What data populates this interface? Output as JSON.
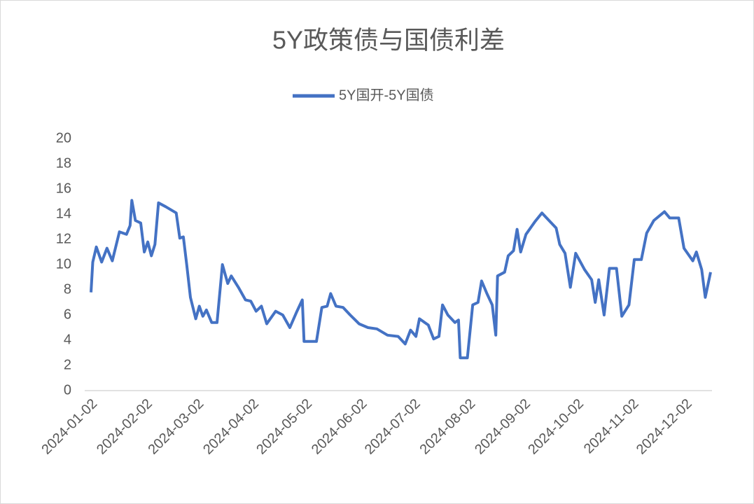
{
  "chart_data": {
    "type": "line",
    "title": "5Y政策债与国债利差",
    "x": [
      "2024-01-02",
      "2024-01-03",
      "2024-01-05",
      "2024-01-08",
      "2024-01-11",
      "2024-01-14",
      "2024-01-18",
      "2024-01-22",
      "2024-01-24",
      "2024-01-25",
      "2024-01-27",
      "2024-01-30",
      "2024-02-01",
      "2024-02-03",
      "2024-02-05",
      "2024-02-07",
      "2024-02-09",
      "2024-02-13",
      "2024-02-19",
      "2024-02-21",
      "2024-02-23",
      "2024-02-25",
      "2024-02-27",
      "2024-03-01",
      "2024-03-03",
      "2024-03-05",
      "2024-03-07",
      "2024-03-10",
      "2024-03-13",
      "2024-03-16",
      "2024-03-19",
      "2024-03-21",
      "2024-03-25",
      "2024-03-29",
      "2024-04-01",
      "2024-04-04",
      "2024-04-07",
      "2024-04-10",
      "2024-04-15",
      "2024-04-19",
      "2024-04-23",
      "2024-04-27",
      "2024-04-30",
      "2024-05-01",
      "2024-05-08",
      "2024-05-11",
      "2024-05-14",
      "2024-05-16",
      "2024-05-19",
      "2024-05-23",
      "2024-05-27",
      "2024-06-01",
      "2024-06-06",
      "2024-06-11",
      "2024-06-17",
      "2024-06-23",
      "2024-06-27",
      "2024-06-30",
      "2024-07-03",
      "2024-07-05",
      "2024-07-10",
      "2024-07-13",
      "2024-07-16",
      "2024-07-18",
      "2024-07-21",
      "2024-07-25",
      "2024-07-27",
      "2024-07-28",
      "2024-08-01",
      "2024-08-04",
      "2024-08-07",
      "2024-08-09",
      "2024-08-12",
      "2024-08-15",
      "2024-08-17",
      "2024-08-18",
      "2024-08-22",
      "2024-08-24",
      "2024-08-27",
      "2024-08-29",
      "2024-08-31",
      "2024-09-03",
      "2024-09-08",
      "2024-09-12",
      "2024-09-16",
      "2024-09-20",
      "2024-09-22",
      "2024-09-25",
      "2024-09-28",
      "2024-10-01",
      "2024-10-06",
      "2024-10-10",
      "2024-10-12",
      "2024-10-14",
      "2024-10-17",
      "2024-10-20",
      "2024-10-24",
      "2024-10-27",
      "2024-10-31",
      "2024-11-03",
      "2024-11-07",
      "2024-11-10",
      "2024-11-14",
      "2024-11-20",
      "2024-11-23",
      "2024-11-28",
      "2024-12-01",
      "2024-12-06",
      "2024-12-08",
      "2024-12-11",
      "2024-12-13",
      "2024-12-16"
    ],
    "series": [
      {
        "name": "5Y国开-5Y国债",
        "color": "#4472c4",
        "values": [
          7.8,
          10.2,
          11.4,
          10.2,
          11.3,
          10.3,
          12.6,
          12.4,
          13.1,
          15.1,
          13.5,
          13.3,
          11.0,
          11.8,
          10.7,
          11.6,
          14.9,
          14.6,
          14.1,
          12.1,
          12.2,
          9.9,
          7.4,
          5.7,
          6.7,
          5.9,
          6.4,
          5.4,
          5.4,
          10.0,
          8.5,
          9.1,
          8.2,
          7.2,
          7.1,
          6.3,
          6.7,
          5.3,
          6.3,
          6.0,
          5.0,
          6.3,
          7.2,
          3.9,
          3.9,
          6.6,
          6.7,
          7.7,
          6.7,
          6.6,
          6.0,
          5.3,
          5.0,
          4.9,
          4.4,
          4.3,
          3.7,
          4.8,
          4.3,
          5.7,
          5.2,
          4.1,
          4.3,
          6.8,
          6.0,
          5.4,
          5.6,
          2.6,
          2.6,
          6.8,
          7.0,
          8.7,
          7.7,
          6.8,
          4.4,
          9.1,
          9.4,
          10.7,
          11.1,
          12.8,
          11.0,
          12.4,
          13.4,
          14.1,
          13.5,
          12.9,
          11.6,
          10.9,
          8.2,
          10.9,
          9.6,
          8.8,
          7.0,
          8.8,
          6.0,
          9.7,
          9.7,
          5.9,
          6.8,
          10.4,
          10.4,
          12.5,
          13.5,
          14.2,
          13.7,
          13.7,
          11.3,
          10.3,
          11.0,
          9.6,
          7.4,
          9.4
        ]
      }
    ],
    "xlim": [
      "2024-01-02",
      "2024-12-16"
    ],
    "xticks": [
      "2024-01-02",
      "2024-02-02",
      "2024-03-02",
      "2024-04-02",
      "2024-05-02",
      "2024-06-02",
      "2024-07-02",
      "2024-08-02",
      "2024-09-02",
      "2024-10-02",
      "2024-11-02",
      "2024-12-02"
    ],
    "ylim": [
      0,
      20
    ],
    "yticks": [
      0,
      2,
      4,
      6,
      8,
      10,
      12,
      14,
      16,
      18,
      20
    ],
    "grid": false
  }
}
